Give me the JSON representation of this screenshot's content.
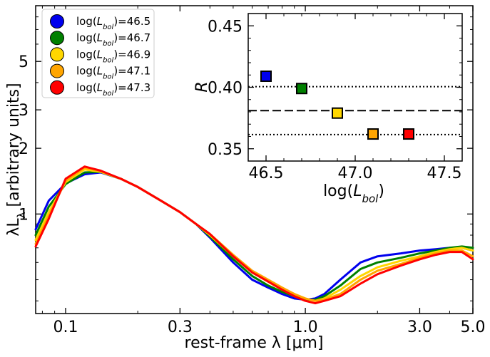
{
  "chart_data": [
    {
      "type": "line",
      "name": "main-sed",
      "xscale": "log",
      "yscale": "log",
      "xlabel": "rest-frame λ [μm]",
      "ylabel": "λL",
      "ylabel_sub": "λ",
      "ylabel_suffix": " [arbitrary units]",
      "xlim": [
        0.075,
        5.0
      ],
      "ylim": [
        0.35,
        9.0
      ],
      "xticks": [
        {
          "value": 0.1,
          "label": "0.1"
        },
        {
          "value": 0.3,
          "label": "0.3"
        },
        {
          "value": 1.0,
          "label": "1.0"
        },
        {
          "value": 3.0,
          "label": "3.0"
        },
        {
          "value": 5.0,
          "label": "5.0"
        }
      ],
      "yticks": [
        {
          "value": 1,
          "label": "1"
        },
        {
          "value": 2,
          "label": "2"
        },
        {
          "value": 3,
          "label": "3"
        },
        {
          "value": 5,
          "label": "5"
        }
      ],
      "legend_position": "top-left",
      "series": [
        {
          "name": "log(Lbol)=46.5",
          "label_prefix": "log(",
          "label_var": "L",
          "label_sub": "bol",
          "label_suffix": ")=46.5",
          "color": "#0000ee",
          "x": [
            0.075,
            0.085,
            0.1,
            0.12,
            0.14,
            0.17,
            0.2,
            0.25,
            0.3,
            0.35,
            0.4,
            0.5,
            0.6,
            0.7,
            0.8,
            0.9,
            1.0,
            1.1,
            1.2,
            1.4,
            1.7,
            2.0,
            2.5,
            3.0,
            3.5,
            4.0,
            4.5,
            5.0
          ],
          "y": [
            0.85,
            1.15,
            1.38,
            1.52,
            1.55,
            1.45,
            1.33,
            1.15,
            1.02,
            0.9,
            0.78,
            0.6,
            0.5,
            0.46,
            0.43,
            0.41,
            0.405,
            0.41,
            0.43,
            0.5,
            0.6,
            0.64,
            0.66,
            0.68,
            0.69,
            0.7,
            0.7,
            0.68
          ]
        },
        {
          "name": "log(Lbol)=46.7",
          "label_prefix": "log(",
          "label_var": "L",
          "label_sub": "bol",
          "label_suffix": ")=46.7",
          "color": "#008000",
          "x": [
            0.075,
            0.085,
            0.1,
            0.12,
            0.14,
            0.17,
            0.2,
            0.25,
            0.3,
            0.35,
            0.4,
            0.5,
            0.6,
            0.7,
            0.8,
            0.9,
            1.0,
            1.1,
            1.2,
            1.4,
            1.7,
            2.0,
            2.5,
            3.0,
            3.5,
            4.0,
            4.5,
            5.0
          ],
          "y": [
            0.8,
            1.08,
            1.37,
            1.55,
            1.56,
            1.45,
            1.33,
            1.15,
            1.02,
            0.9,
            0.79,
            0.62,
            0.52,
            0.47,
            0.44,
            0.42,
            0.405,
            0.405,
            0.42,
            0.47,
            0.56,
            0.6,
            0.63,
            0.66,
            0.68,
            0.7,
            0.71,
            0.7
          ]
        },
        {
          "name": "log(Lbol)=46.9",
          "label_prefix": "log(",
          "label_var": "L",
          "label_sub": "bol",
          "label_suffix": ")=46.9",
          "color": "#ffd700",
          "x": [
            0.075,
            0.085,
            0.1,
            0.12,
            0.14,
            0.17,
            0.2,
            0.25,
            0.3,
            0.35,
            0.4,
            0.5,
            0.6,
            0.7,
            0.8,
            0.9,
            1.0,
            1.1,
            1.2,
            1.4,
            1.7,
            2.0,
            2.5,
            3.0,
            3.5,
            4.0,
            4.5,
            5.0
          ],
          "y": [
            0.76,
            1.02,
            1.4,
            1.6,
            1.56,
            1.45,
            1.33,
            1.15,
            1.02,
            0.9,
            0.8,
            0.64,
            0.54,
            0.49,
            0.45,
            0.43,
            0.41,
            0.4,
            0.41,
            0.45,
            0.52,
            0.57,
            0.61,
            0.64,
            0.67,
            0.69,
            0.7,
            0.68
          ]
        },
        {
          "name": "log(Lbol)=47.1",
          "label_prefix": "log(",
          "label_var": "L",
          "label_sub": "bol",
          "label_suffix": ")=47.1",
          "color": "#ffa500",
          "x": [
            0.075,
            0.085,
            0.1,
            0.12,
            0.14,
            0.17,
            0.2,
            0.25,
            0.3,
            0.35,
            0.4,
            0.5,
            0.6,
            0.7,
            0.8,
            0.9,
            1.0,
            1.1,
            1.2,
            1.4,
            1.7,
            2.0,
            2.5,
            3.0,
            3.5,
            4.0,
            4.5,
            5.0
          ],
          "y": [
            0.73,
            0.98,
            1.42,
            1.63,
            1.57,
            1.45,
            1.33,
            1.15,
            1.02,
            0.9,
            0.81,
            0.65,
            0.55,
            0.5,
            0.46,
            0.43,
            0.41,
            0.4,
            0.405,
            0.43,
            0.5,
            0.55,
            0.59,
            0.63,
            0.66,
            0.68,
            0.68,
            0.64
          ]
        },
        {
          "name": "log(Lbol)=47.3",
          "label_prefix": "log(",
          "label_var": "L",
          "label_sub": "bol",
          "label_suffix": ")=47.3",
          "color": "#ff0000",
          "x": [
            0.075,
            0.085,
            0.1,
            0.12,
            0.14,
            0.17,
            0.2,
            0.25,
            0.3,
            0.35,
            0.4,
            0.5,
            0.6,
            0.7,
            0.8,
            0.9,
            1.0,
            1.1,
            1.2,
            1.4,
            1.7,
            2.0,
            2.5,
            3.0,
            3.5,
            4.0,
            4.5,
            5.0
          ],
          "y": [
            0.71,
            0.95,
            1.45,
            1.65,
            1.58,
            1.45,
            1.33,
            1.15,
            1.02,
            0.9,
            0.81,
            0.64,
            0.54,
            0.49,
            0.45,
            0.42,
            0.4,
            0.39,
            0.4,
            0.42,
            0.48,
            0.53,
            0.58,
            0.62,
            0.65,
            0.67,
            0.67,
            0.62
          ]
        }
      ]
    },
    {
      "type": "scatter",
      "name": "inset-R",
      "xlabel_prefix": "log(",
      "xlabel_var": "L",
      "xlabel_sub": "bol",
      "xlabel_suffix": ")",
      "ylabel": "R",
      "xlim": [
        46.4,
        47.6
      ],
      "ylim": [
        0.34,
        0.46
      ],
      "xticks": [
        {
          "value": 46.5,
          "label": "46.5"
        },
        {
          "value": 47.0,
          "label": "47.0"
        },
        {
          "value": 47.5,
          "label": "47.5"
        }
      ],
      "yticks": [
        {
          "value": 0.35,
          "label": "0.35"
        },
        {
          "value": 0.4,
          "label": "0.40"
        },
        {
          "value": 0.45,
          "label": "0.45"
        }
      ],
      "points": [
        {
          "x": 46.5,
          "y": 0.409,
          "color": "#0000ee"
        },
        {
          "x": 46.7,
          "y": 0.399,
          "color": "#008000"
        },
        {
          "x": 46.9,
          "y": 0.379,
          "color": "#ffd700"
        },
        {
          "x": 47.1,
          "y": 0.362,
          "color": "#ffa500"
        },
        {
          "x": 47.3,
          "y": 0.362,
          "color": "#ff0000"
        }
      ],
      "hlines": [
        {
          "y": 0.4005,
          "style": "dotted"
        },
        {
          "y": 0.381,
          "style": "dashed"
        },
        {
          "y": 0.3615,
          "style": "dotted"
        }
      ]
    }
  ]
}
